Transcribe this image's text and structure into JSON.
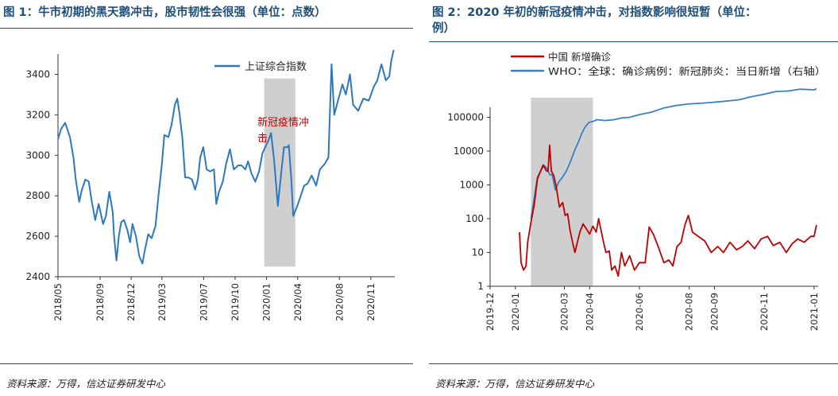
{
  "left": {
    "title": "图 1：牛市初期的黑天鹅冲击，股市韧性会很强（单位：点数）",
    "source": "资料来源：万得，信达证券研发中心",
    "chart_data": {
      "type": "line",
      "title": "图 1：牛市初期的黑天鹅冲击，股市韧性会很强（单位：点数）",
      "series": [
        {
          "name": "上证综合指数",
          "color": "#2b78bf",
          "values": [
            [
              "2018-05-01",
              3080
            ],
            [
              "2018-05-10",
              3130
            ],
            [
              "2018-05-22",
              3160
            ],
            [
              "2018-06-05",
              3090
            ],
            [
              "2018-06-15",
              2990
            ],
            [
              "2018-06-22",
              2880
            ],
            [
              "2018-07-02",
              2770
            ],
            [
              "2018-07-10",
              2830
            ],
            [
              "2018-07-20",
              2880
            ],
            [
              "2018-07-30",
              2870
            ],
            [
              "2018-08-08",
              2770
            ],
            [
              "2018-08-18",
              2680
            ],
            [
              "2018-08-28",
              2760
            ],
            [
              "2018-09-10",
              2660
            ],
            [
              "2018-09-18",
              2700
            ],
            [
              "2018-09-28",
              2820
            ],
            [
              "2018-10-08",
              2720
            ],
            [
              "2018-10-12",
              2600
            ],
            [
              "2018-10-19",
              2480
            ],
            [
              "2018-10-26",
              2600
            ],
            [
              "2018-11-02",
              2670
            ],
            [
              "2018-11-10",
              2680
            ],
            [
              "2018-11-20",
              2630
            ],
            [
              "2018-11-28",
              2570
            ],
            [
              "2018-12-05",
              2660
            ],
            [
              "2018-12-15",
              2600
            ],
            [
              "2018-12-25",
              2500
            ],
            [
              "2019-01-03",
              2465
            ],
            [
              "2019-01-10",
              2530
            ],
            [
              "2019-01-20",
              2610
            ],
            [
              "2019-01-30",
              2590
            ],
            [
              "2019-02-10",
              2650
            ],
            [
              "2019-02-20",
              2820
            ],
            [
              "2019-02-28",
              2940
            ],
            [
              "2019-03-08",
              3100
            ],
            [
              "2019-03-20",
              3090
            ],
            [
              "2019-03-29",
              3150
            ],
            [
              "2019-04-08",
              3250
            ],
            [
              "2019-04-15",
              3280
            ],
            [
              "2019-04-22",
              3200
            ],
            [
              "2019-04-30",
              3080
            ],
            [
              "2019-05-08",
              2890
            ],
            [
              "2019-05-18",
              2890
            ],
            [
              "2019-05-28",
              2880
            ],
            [
              "2019-06-06",
              2830
            ],
            [
              "2019-06-14",
              2880
            ],
            [
              "2019-06-21",
              2990
            ],
            [
              "2019-06-30",
              3040
            ],
            [
              "2019-07-10",
              2930
            ],
            [
              "2019-07-20",
              2920
            ],
            [
              "2019-07-31",
              2930
            ],
            [
              "2019-08-07",
              2760
            ],
            [
              "2019-08-15",
              2820
            ],
            [
              "2019-08-26",
              2870
            ],
            [
              "2019-09-05",
              2960
            ],
            [
              "2019-09-16",
              3030
            ],
            [
              "2019-09-27",
              2930
            ],
            [
              "2019-10-10",
              2950
            ],
            [
              "2019-10-20",
              2950
            ],
            [
              "2019-10-31",
              2930
            ],
            [
              "2019-11-08",
              2970
            ],
            [
              "2019-11-18",
              2910
            ],
            [
              "2019-11-29",
              2870
            ],
            [
              "2019-12-10",
              2920
            ],
            [
              "2019-12-20",
              3010
            ],
            [
              "2019-12-31",
              3050
            ],
            [
              "2020-01-08",
              3080
            ],
            [
              "2020-01-14",
              3110
            ],
            [
              "2020-01-23",
              2980
            ],
            [
              "2020-02-03",
              2750
            ],
            [
              "2020-02-12",
              2900
            ],
            [
              "2020-02-21",
              3040
            ],
            [
              "2020-03-02",
              3040
            ],
            [
              "2020-03-06",
              3050
            ],
            [
              "2020-03-13",
              2890
            ],
            [
              "2020-03-19",
              2700
            ],
            [
              "2020-03-31",
              2750
            ],
            [
              "2020-04-10",
              2800
            ],
            [
              "2020-04-20",
              2850
            ],
            [
              "2020-04-30",
              2860
            ],
            [
              "2020-05-12",
              2900
            ],
            [
              "2020-05-25",
              2850
            ],
            [
              "2020-06-05",
              2930
            ],
            [
              "2020-06-20",
              2960
            ],
            [
              "2020-06-30",
              2990
            ],
            [
              "2020-07-03",
              3150
            ],
            [
              "2020-07-09",
              3450
            ],
            [
              "2020-07-17",
              3200
            ],
            [
              "2020-07-28",
              3270
            ],
            [
              "2020-08-10",
              3350
            ],
            [
              "2020-08-20",
              3300
            ],
            [
              "2020-09-01",
              3400
            ],
            [
              "2020-09-10",
              3250
            ],
            [
              "2020-09-25",
              3220
            ],
            [
              "2020-10-10",
              3280
            ],
            [
              "2020-10-26",
              3270
            ],
            [
              "2020-11-10",
              3340
            ],
            [
              "2020-11-20",
              3370
            ],
            [
              "2020-12-02",
              3450
            ],
            [
              "2020-12-15",
              3370
            ],
            [
              "2020-12-25",
              3390
            ],
            [
              "2020-12-31",
              3470
            ],
            [
              "2021-01-07",
              3520
            ]
          ]
        }
      ],
      "shaded_range": [
        "2019-12-25",
        "2020-03-25"
      ],
      "annotation": "新冠疫情冲击",
      "ylim": [
        2400,
        3500
      ],
      "yticks": [
        "2400",
        "2600",
        "2800",
        "3000",
        "3200",
        "3400"
      ],
      "xticks": [
        "2018/05",
        "2018/09",
        "2018/12",
        "2019/03",
        "2019/07",
        "2019/10",
        "2020/01",
        "2020/04",
        "2020/08",
        "2020/11"
      ]
    }
  },
  "right": {
    "title_line1": "图 2：2020 年初的新冠疫情冲击，对指数影响很短暂（单位：",
    "title_line2": "例）",
    "source": "资料来源：万得，信达证券研发中心",
    "chart_data": {
      "type": "line",
      "yscale": "log",
      "title": "图 2：2020 年初的新冠疫情冲击，对指数影响很短暂（单位：例）",
      "series": [
        {
          "name": "中国 新增确诊",
          "color": "#c00000",
          "values": [
            [
              "2020-01-06",
              40
            ],
            [
              "2020-01-08",
              5
            ],
            [
              "2020-01-11",
              3
            ],
            [
              "2020-01-14",
              4
            ],
            [
              "2020-01-16",
              20
            ],
            [
              "2020-01-20",
              77
            ],
            [
              "2020-01-24",
              250
            ],
            [
              "2020-01-28",
              1500
            ],
            [
              "2020-02-01",
              2600
            ],
            [
              "2020-02-04",
              3900
            ],
            [
              "2020-02-08",
              2600
            ],
            [
              "2020-02-10",
              2500
            ],
            [
              "2020-02-12",
              15000
            ],
            [
              "2020-02-14",
              2600
            ],
            [
              "2020-02-17",
              1900
            ],
            [
              "2020-02-20",
              900
            ],
            [
              "2020-02-24",
              220
            ],
            [
              "2020-02-28",
              300
            ],
            [
              "2020-03-02",
              125
            ],
            [
              "2020-03-05",
              140
            ],
            [
              "2020-03-08",
              45
            ],
            [
              "2020-03-11",
              20
            ],
            [
              "2020-03-14",
              10
            ],
            [
              "2020-03-17",
              20
            ],
            [
              "2020-03-20",
              40
            ],
            [
              "2020-03-24",
              70
            ],
            [
              "2020-03-28",
              50
            ],
            [
              "2020-04-01",
              35
            ],
            [
              "2020-04-05",
              60
            ],
            [
              "2020-04-09",
              40
            ],
            [
              "2020-04-12",
              100
            ],
            [
              "2020-04-15",
              45
            ],
            [
              "2020-04-18",
              20
            ],
            [
              "2020-04-21",
              10
            ],
            [
              "2020-04-25",
              11
            ],
            [
              "2020-04-28",
              3
            ],
            [
              "2020-05-02",
              4
            ],
            [
              "2020-05-06",
              2
            ],
            [
              "2020-05-10",
              10
            ],
            [
              "2020-05-14",
              4
            ],
            [
              "2020-05-20",
              8
            ],
            [
              "2020-05-26",
              3
            ],
            [
              "2020-06-01",
              5
            ],
            [
              "2020-06-08",
              5
            ],
            [
              "2020-06-13",
              57
            ],
            [
              "2020-06-18",
              35
            ],
            [
              "2020-06-24",
              15
            ],
            [
              "2020-07-01",
              5
            ],
            [
              "2020-07-07",
              6
            ],
            [
              "2020-07-12",
              4
            ],
            [
              "2020-07-17",
              15
            ],
            [
              "2020-07-22",
              20
            ],
            [
              "2020-07-27",
              68
            ],
            [
              "2020-07-31",
              125
            ],
            [
              "2020-08-05",
              40
            ],
            [
              "2020-08-12",
              30
            ],
            [
              "2020-08-20",
              22
            ],
            [
              "2020-08-28",
              10
            ],
            [
              "2020-09-05",
              15
            ],
            [
              "2020-09-12",
              10
            ],
            [
              "2020-09-20",
              20
            ],
            [
              "2020-09-28",
              12
            ],
            [
              "2020-10-05",
              15
            ],
            [
              "2020-10-12",
              22
            ],
            [
              "2020-10-20",
              13
            ],
            [
              "2020-10-28",
              25
            ],
            [
              "2020-11-05",
              30
            ],
            [
              "2020-11-12",
              16
            ],
            [
              "2020-11-20",
              20
            ],
            [
              "2020-11-28",
              10
            ],
            [
              "2020-12-05",
              18
            ],
            [
              "2020-12-12",
              25
            ],
            [
              "2020-12-20",
              20
            ],
            [
              "2020-12-28",
              30
            ],
            [
              "2021-01-01",
              30
            ],
            [
              "2021-01-04",
              65
            ]
          ]
        },
        {
          "name": "WHO：全球：确诊病例：新冠肺炎：当日新增（右轴）",
          "color": "#3a7fc2",
          "values": [
            [
              "2020-01-20",
              100
            ],
            [
              "2020-01-24",
              400
            ],
            [
              "2020-01-28",
              1700
            ],
            [
              "2020-02-01",
              2600
            ],
            [
              "2020-02-05",
              3800
            ],
            [
              "2020-02-09",
              3000
            ],
            [
              "2020-02-12",
              2000
            ],
            [
              "2020-02-15",
              2000
            ],
            [
              "2020-02-19",
              700
            ],
            [
              "2020-02-23",
              1200
            ],
            [
              "2020-02-27",
              1600
            ],
            [
              "2020-03-02",
              2200
            ],
            [
              "2020-03-06",
              3500
            ],
            [
              "2020-03-10",
              6000
            ],
            [
              "2020-03-14",
              11000
            ],
            [
              "2020-03-18",
              18000
            ],
            [
              "2020-03-22",
              32000
            ],
            [
              "2020-03-26",
              50000
            ],
            [
              "2020-03-31",
              70000
            ],
            [
              "2020-04-05",
              75000
            ],
            [
              "2020-04-10",
              85000
            ],
            [
              "2020-04-20",
              80000
            ],
            [
              "2020-05-01",
              85000
            ],
            [
              "2020-05-10",
              95000
            ],
            [
              "2020-05-20",
              100000
            ],
            [
              "2020-06-01",
              120000
            ],
            [
              "2020-06-15",
              140000
            ],
            [
              "2020-07-01",
              190000
            ],
            [
              "2020-07-15",
              220000
            ],
            [
              "2020-08-01",
              250000
            ],
            [
              "2020-08-15",
              260000
            ],
            [
              "2020-09-01",
              280000
            ],
            [
              "2020-09-15",
              300000
            ],
            [
              "2020-10-01",
              330000
            ],
            [
              "2020-10-15",
              400000
            ],
            [
              "2020-11-01",
              480000
            ],
            [
              "2020-11-15",
              580000
            ],
            [
              "2020-12-01",
              600000
            ],
            [
              "2020-12-15",
              680000
            ],
            [
              "2021-01-01",
              650000
            ],
            [
              "2021-01-04",
              700000
            ]
          ]
        }
      ],
      "shaded_range": [
        "2020-01-20",
        "2020-04-05"
      ],
      "ylim": [
        1,
        1000000
      ],
      "yticks": [
        "1",
        "10",
        "100",
        "1000",
        "10000",
        "100000"
      ],
      "xticks": [
        "2019-12",
        "2020-01",
        "2020-03",
        "2020-04",
        "2020-06",
        "2020-08",
        "2020-09",
        "2020-11",
        "2021-01"
      ]
    }
  }
}
